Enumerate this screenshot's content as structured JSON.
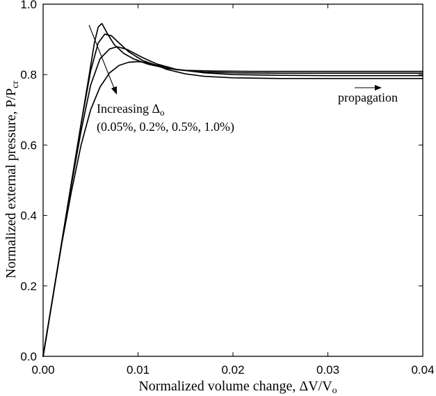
{
  "chart_data": {
    "type": "line",
    "xlabel": "Normalized volume change, ΔV/V",
    "xlabel_sub": "o",
    "ylabel": "Normalized external pressure, P/P",
    "ylabel_sub": "cr",
    "xlim": [
      0,
      0.04
    ],
    "ylim": [
      0,
      1.0
    ],
    "xticks": [
      0,
      0.01,
      0.02,
      0.03,
      0.04
    ],
    "xtick_labels": [
      "0.00",
      "0.01",
      "0.02",
      "0.03",
      "0.04"
    ],
    "yticks": [
      0,
      0.2,
      0.4,
      0.6,
      0.8,
      1.0
    ],
    "ytick_labels": [
      "0.0",
      "0.2",
      "0.4",
      "0.6",
      "0.8",
      "1.0"
    ],
    "grid": false,
    "line_color": "#000000",
    "series": [
      {
        "x": [
          0,
          0.001,
          0.002,
          0.003,
          0.004,
          0.0048,
          0.0054,
          0.0058,
          0.0062,
          0.0068,
          0.0075,
          0.0085,
          0.0095,
          0.011,
          0.013,
          0.015,
          0.018,
          0.022,
          0.03,
          0.04
        ],
        "y": [
          0,
          0.165,
          0.33,
          0.495,
          0.66,
          0.79,
          0.89,
          0.935,
          0.945,
          0.915,
          0.885,
          0.86,
          0.845,
          0.83,
          0.818,
          0.812,
          0.81,
          0.809,
          0.809,
          0.809
        ]
      },
      {
        "x": [
          0,
          0.001,
          0.002,
          0.003,
          0.004,
          0.005,
          0.0058,
          0.0065,
          0.0072,
          0.008,
          0.009,
          0.0105,
          0.012,
          0.014,
          0.017,
          0.02,
          0.025,
          0.03,
          0.04
        ],
        "y": [
          0,
          0.165,
          0.33,
          0.495,
          0.66,
          0.81,
          0.89,
          0.915,
          0.91,
          0.89,
          0.865,
          0.84,
          0.826,
          0.814,
          0.807,
          0.805,
          0.804,
          0.804,
          0.804
        ]
      },
      {
        "x": [
          0,
          0.001,
          0.002,
          0.003,
          0.004,
          0.005,
          0.006,
          0.007,
          0.0078,
          0.0088,
          0.0105,
          0.012,
          0.014,
          0.017,
          0.02,
          0.025,
          0.03,
          0.04
        ],
        "y": [
          0,
          0.165,
          0.33,
          0.49,
          0.64,
          0.77,
          0.845,
          0.873,
          0.879,
          0.872,
          0.848,
          0.83,
          0.815,
          0.805,
          0.8,
          0.798,
          0.797,
          0.797
        ]
      },
      {
        "x": [
          0,
          0.001,
          0.002,
          0.003,
          0.004,
          0.005,
          0.006,
          0.007,
          0.008,
          0.009,
          0.01,
          0.011,
          0.012,
          0.013,
          0.015,
          0.017,
          0.02,
          0.025,
          0.03,
          0.04
        ],
        "y": [
          0,
          0.165,
          0.325,
          0.47,
          0.6,
          0.7,
          0.765,
          0.805,
          0.826,
          0.835,
          0.837,
          0.834,
          0.826,
          0.815,
          0.802,
          0.795,
          0.791,
          0.789,
          0.789,
          0.789
        ]
      }
    ],
    "annotations": {
      "increasing": "Increasing Δ",
      "increasing_sub": "o",
      "values": "(0.05%, 0.2%, 0.5%, 1.0%)",
      "propagation": "propagation"
    }
  }
}
